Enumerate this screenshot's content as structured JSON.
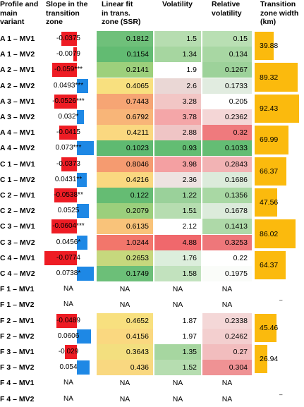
{
  "headers": {
    "profile": [
      "Profile and",
      "main",
      "variant"
    ],
    "slope": [
      "Slope in the",
      "transition",
      "zone"
    ],
    "ssr": [
      "Linear fit",
      "in trans.",
      "zone (SSR)"
    ],
    "volatility": [
      "Volatility"
    ],
    "relvol": [
      "Relative",
      "volatility"
    ],
    "width": [
      "Transition",
      "zone width",
      "(km)"
    ]
  },
  "rows": [
    {
      "label": "A 1 – MV1",
      "slope": "-0.0375",
      "slope_value": -0.0375,
      "ssr": "0.1812",
      "ssr_color": "#6fc07a",
      "vol": "1.5",
      "vol_color": "#b6ddb0",
      "rel": "0.15",
      "rel_color": "#b9dfb3"
    },
    {
      "label": "A 1 – MV2",
      "slope": "-0.0079",
      "slope_value": -0.0079,
      "ssr": "0.1154",
      "ssr_color": "#62bb72",
      "vol": "1.34",
      "vol_color": "#a6d6a0",
      "rel": "0.134",
      "rel_color": "#a8d7a3"
    },
    {
      "label": "A 2 – MV1",
      "slope": "-0.059***",
      "slope_value": -0.059,
      "ssr": "0.2141",
      "ssr_color": "#9dd07c",
      "vol": "1.9",
      "vol_color": "#ffffff",
      "rel": "0.1267",
      "rel_color": "#9dd29a"
    },
    {
      "label": "A 2 – MV2",
      "slope": "0.0493***",
      "slope_value": 0.0493,
      "ssr": "0.4065",
      "ssr_color": "#f8e07f",
      "vol": "2.6",
      "vol_color": "#ead7d5",
      "rel": "0.1733",
      "rel_color": "#e1ece0"
    },
    {
      "label": "A 3 – MV1",
      "slope": "-0.0526***",
      "slope_value": -0.0526,
      "ssr": "0.7443",
      "ssr_color": "#f6a574",
      "vol": "3.28",
      "vol_color": "#f2c6c5",
      "rel": "0.205",
      "rel_color": "#ffffff"
    },
    {
      "label": "A 3 – MV2",
      "slope": "0.032*",
      "slope_value": 0.032,
      "ssr": "0.6792",
      "ssr_color": "#f8b578",
      "vol": "3.78",
      "vol_color": "#f4a6a8",
      "rel": "0.2362",
      "rel_color": "#f4d6d6"
    },
    {
      "label": "A 4 – MV1",
      "slope": "-0.0415",
      "slope_value": -0.0415,
      "ssr": "0.4211",
      "ssr_color": "#fad880",
      "vol": "2.88",
      "vol_color": "#efc5c5",
      "rel": "0.32",
      "rel_color": "#ef7a7d"
    },
    {
      "label": "A 4 – MV2",
      "slope": "0.073***",
      "slope_value": 0.073,
      "ssr": "0.1023",
      "ssr_color": "#5fba71",
      "vol": "0.93",
      "vol_color": "#63bd73",
      "rel": "0.1033",
      "rel_color": "#64bd74"
    },
    {
      "label": "C 1 – MV1",
      "slope": "-0.0373",
      "slope_value": -0.0373,
      "ssr": "0.8046",
      "ssr_color": "#f59b70",
      "vol": "3.98",
      "vol_color": "#f4a0a2",
      "rel": "0.2843",
      "rel_color": "#f2b3b4"
    },
    {
      "label": "C 1 – MV2",
      "slope": "0.0431**",
      "slope_value": 0.0431,
      "ssr": "0.4216",
      "ssr_color": "#fad880",
      "vol": "2.36",
      "vol_color": "#eee3e1",
      "rel": "0.1686",
      "rel_color": "#dcebdb"
    },
    {
      "label": "C 2 – MV1",
      "slope": "-0.0538**",
      "slope_value": -0.0538,
      "ssr": "0.122",
      "ssr_color": "#65bc73",
      "vol": "1.22",
      "vol_color": "#9ad19a",
      "rel": "0.1356",
      "rel_color": "#a9d8a4"
    },
    {
      "label": "C 2 – MV2",
      "slope": "0.0525",
      "slope_value": 0.0525,
      "ssr": "0.2079",
      "ssr_color": "#9bcf7c",
      "vol": "1.51",
      "vol_color": "#b6ddb0",
      "rel": "0.1678",
      "rel_color": "#dcebdb"
    },
    {
      "label": "C 3 – MV1",
      "slope": "-0.0604***",
      "slope_value": -0.0604,
      "ssr": "0.6135",
      "ssr_color": "#f9c37a",
      "vol": "2.12",
      "vol_color": "#ffffff",
      "rel": "0.1413",
      "rel_color": "#aed9a8"
    },
    {
      "label": "C 3 – MV2",
      "slope": "0.0456*",
      "slope_value": 0.0456,
      "ssr": "1.0244",
      "ssr_color": "#f2766b",
      "vol": "4.88",
      "vol_color": "#f0686c",
      "rel": "0.3253",
      "rel_color": "#ee777a"
    },
    {
      "label": "C 4 – MV1",
      "slope": "-0.0774",
      "slope_value": -0.0774,
      "ssr": "0.2653",
      "ssr_color": "#c6d87d",
      "vol": "1.76",
      "vol_color": "#dceedc",
      "rel": "0.22",
      "rel_color": "#ffffff"
    },
    {
      "label": "C 4 – MV2",
      "slope": "0.0738*",
      "slope_value": 0.0738,
      "ssr": "0.1749",
      "ssr_color": "#6cbf78",
      "vol": "1.58",
      "vol_color": "#c2e2be",
      "rel": "0.1975",
      "rel_color": "#fafcf9"
    },
    {
      "label": "F 1 – MV1",
      "slope": "NA",
      "slope_value": null,
      "ssr": "NA",
      "ssr_color": "#ffffff",
      "vol": "NA",
      "vol_color": "#ffffff",
      "rel": "NA",
      "rel_color": "#ffffff"
    },
    {
      "label": "F 1 – MV2",
      "slope": "NA",
      "slope_value": null,
      "ssr": "NA",
      "ssr_color": "#ffffff",
      "vol": "NA",
      "vol_color": "#ffffff",
      "rel": "NA",
      "rel_color": "#ffffff"
    },
    {
      "label": "F 2 – MV1",
      "slope": "-0.0489",
      "slope_value": -0.0489,
      "ssr": "0.4652",
      "ssr_color": "#f8e07f",
      "vol": "1.87",
      "vol_color": "#ffffff",
      "rel": "0.2338",
      "rel_color": "#f4d7d7"
    },
    {
      "label": "F 2 – MV2",
      "slope": "0.0606",
      "slope_value": 0.0606,
      "ssr": "0.4156",
      "ssr_color": "#fad880",
      "vol": "1.97",
      "vol_color": "#ffffff",
      "rel": "0.2462",
      "rel_color": "#f3cfcf"
    },
    {
      "label": "F 3 – MV1",
      "slope": "-0.029",
      "slope_value": -0.029,
      "ssr": "0.3643",
      "ssr_color": "#f3df7f",
      "vol": "1.35",
      "vol_color": "#a6d6a0",
      "rel": "0.27",
      "rel_color": "#f2bdbe"
    },
    {
      "label": "F 3 – MV2",
      "slope": "0.054",
      "slope_value": 0.054,
      "ssr": "0.436",
      "ssr_color": "#f9d880",
      "vol": "1.52",
      "vol_color": "#b6ddb0",
      "rel": "0.304",
      "rel_color": "#ef9294"
    },
    {
      "label": "F 4 – MV1",
      "slope": "NA",
      "slope_value": null,
      "ssr": "NA",
      "ssr_color": "#ffffff",
      "vol": "NA",
      "vol_color": "#ffffff",
      "rel": "NA",
      "rel_color": "#ffffff"
    },
    {
      "label": "F 4 – MV2",
      "slope": "NA",
      "slope_value": null,
      "ssr": "NA",
      "ssr_color": "#ffffff",
      "vol": "NA",
      "vol_color": "#ffffff",
      "rel": "NA",
      "rel_color": "#ffffff"
    }
  ],
  "widths": [
    {
      "label": "39.88",
      "value": 39.88
    },
    {
      "label": "89.32",
      "value": 89.32
    },
    {
      "label": "92.43",
      "value": 92.43
    },
    {
      "label": "69.99",
      "value": 69.99
    },
    {
      "label": "66.37",
      "value": 66.37
    },
    {
      "label": "47.56",
      "value": 47.56
    },
    {
      "label": "86.02",
      "value": 86.02
    },
    {
      "label": "64.37",
      "value": 64.37
    },
    {
      "label": "–",
      "value": null
    },
    {
      "label": "45.46",
      "value": 45.46
    },
    {
      "label": "26.94",
      "value": 26.94
    },
    {
      "label": "–",
      "value": null
    }
  ],
  "colors": {
    "negative_slope": "#ee1c24",
    "positive_slope": "#1e88e5",
    "width_bar": "#fbba0d"
  }
}
